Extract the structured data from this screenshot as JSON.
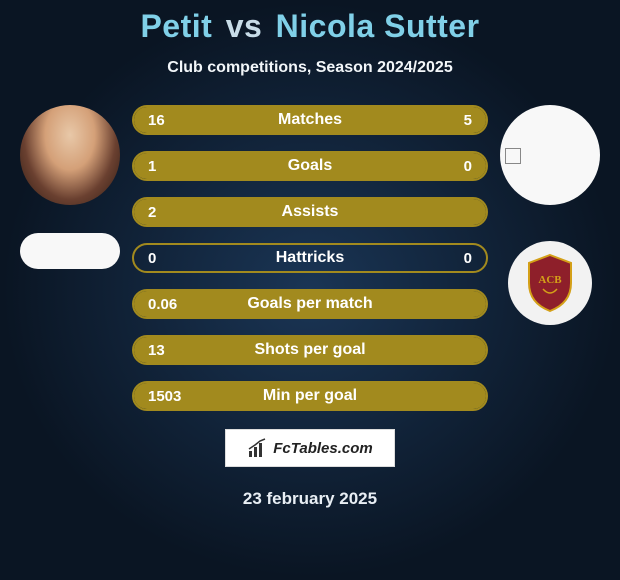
{
  "title": {
    "player1": "Petit",
    "vs": "vs",
    "player2": "Nicola Sutter",
    "color_players": "#80d0e8",
    "color_vs": "#c8dce8"
  },
  "subtitle": "Club competitions, Season 2024/2025",
  "left": {
    "avatar_style": "player-photo",
    "club_pill_bg": "#f8f8f8"
  },
  "right": {
    "avatar_style": "blank",
    "crest_colors": {
      "bg": "#f2f2f2",
      "shield": "#8e1f2a",
      "rim": "#d4a018"
    }
  },
  "bars": {
    "border_color": "#a28a1e",
    "fill_color": "#a28a1e",
    "text_color": "#ffffff",
    "items": [
      {
        "label": "Matches",
        "left": "16",
        "right": "5",
        "left_pct": 76,
        "right_pct": 24
      },
      {
        "label": "Goals",
        "left": "1",
        "right": "0",
        "left_pct": 100,
        "right_pct": 0
      },
      {
        "label": "Assists",
        "left": "2",
        "right": "",
        "left_pct": 100,
        "right_pct": 0
      },
      {
        "label": "Hattricks",
        "left": "0",
        "right": "0",
        "left_pct": 0,
        "right_pct": 0
      },
      {
        "label": "Goals per match",
        "left": "0.06",
        "right": "",
        "left_pct": 100,
        "right_pct": 0
      },
      {
        "label": "Shots per goal",
        "left": "13",
        "right": "",
        "left_pct": 100,
        "right_pct": 0
      },
      {
        "label": "Min per goal",
        "left": "1503",
        "right": "",
        "left_pct": 100,
        "right_pct": 0
      }
    ]
  },
  "watermark": {
    "text": "FcTables.com"
  },
  "date": "23 february 2025",
  "colors": {
    "background_inner": "#1a3555",
    "background_outer": "#0a1523"
  }
}
